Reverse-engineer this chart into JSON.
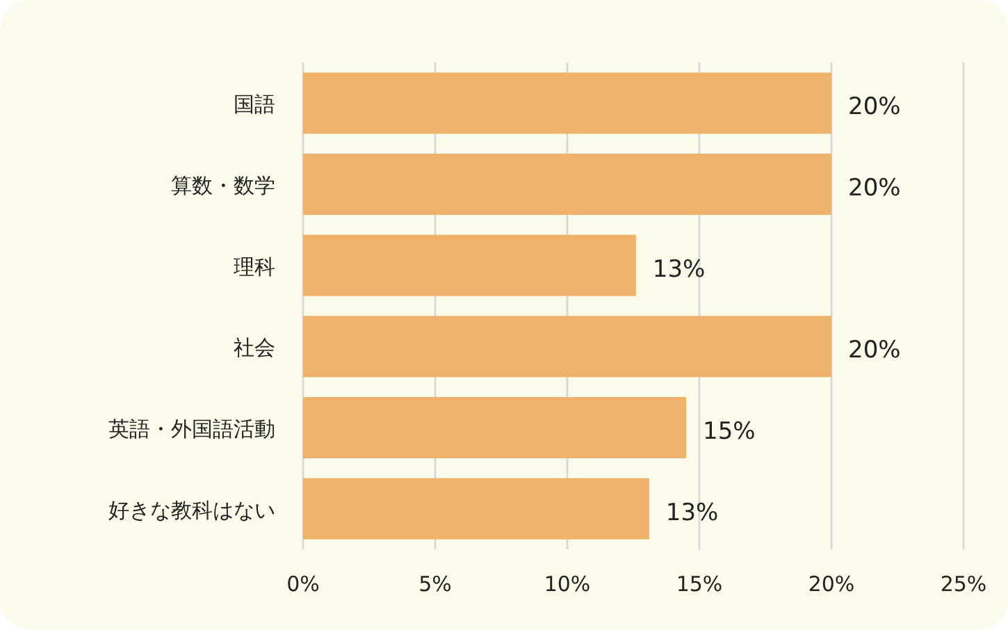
{
  "chart_data": {
    "type": "bar",
    "orientation": "horizontal",
    "categories": [
      "国語",
      "算数・数学",
      "理科",
      "社会",
      "英語・外国語活動",
      "好きな教科はない"
    ],
    "values": [
      20,
      20,
      12.6,
      20,
      14.5,
      13.1
    ],
    "value_labels": [
      "20%",
      "20%",
      "13%",
      "20%",
      "15%",
      "13%"
    ],
    "color": "#eeb26b",
    "xlim": [
      0,
      25
    ],
    "xticks": [
      {
        "value": 0,
        "label": "0%"
      },
      {
        "value": 5,
        "label": "5%"
      },
      {
        "value": 10,
        "label": "10%"
      },
      {
        "value": 15,
        "label": "15%"
      },
      {
        "value": 20,
        "label": "20%"
      },
      {
        "value": 25,
        "label": "25%"
      }
    ],
    "grid": "x"
  }
}
